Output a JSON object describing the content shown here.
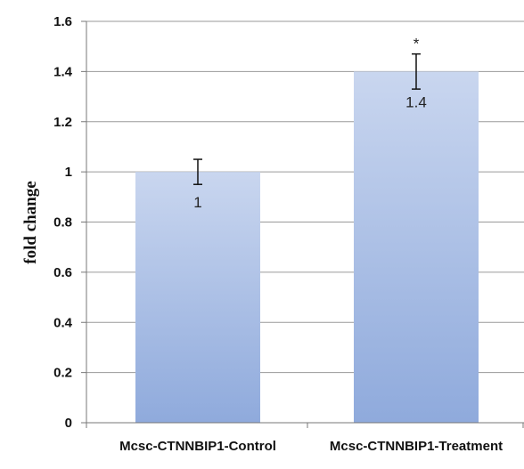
{
  "chart_data": {
    "type": "bar",
    "categories": [
      "Mcsc-CTNNBIP1-Control",
      "Mcsc-CTNNBIP1-Treatment"
    ],
    "values": [
      1,
      1.4
    ],
    "error": [
      0.05,
      0.07
    ],
    "data_labels": [
      "1",
      "1.4"
    ],
    "annotations": [
      "",
      "*"
    ],
    "title": "",
    "xlabel": "",
    "ylabel": "fold change",
    "ylim": [
      0,
      1.6
    ],
    "yticks": [
      "0",
      "0.2",
      "0.4",
      "0.6",
      "0.8",
      "1",
      "1.2",
      "1.4",
      "1.6"
    ],
    "grid": true,
    "colors": {
      "bar_top": "#c9d6ef",
      "bar_bottom": "#8faadc",
      "grid": "#9a9a9a",
      "axis": "#777777"
    }
  }
}
